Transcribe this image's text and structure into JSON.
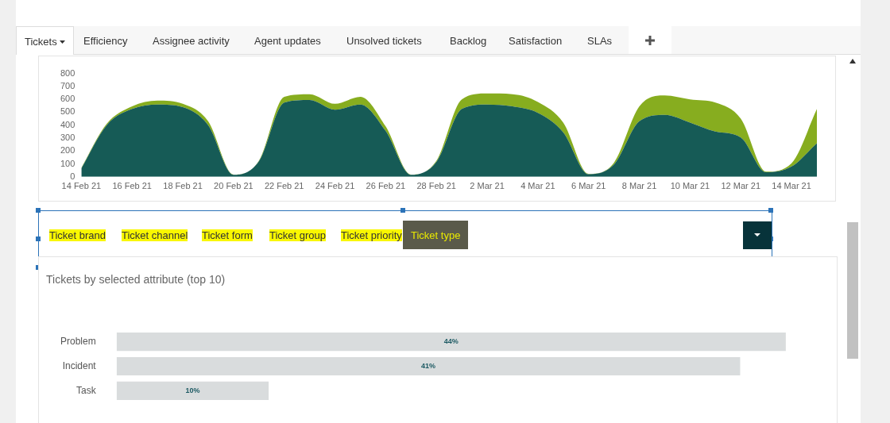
{
  "chart_data": [
    {
      "type": "other",
      "annotations": [
        "Tickets",
        "Efficiency",
        "Assignee activity",
        "Agent updates",
        "Unsolved tickets",
        "Backlog",
        "Satisfaction",
        "SLAs"
      ]
    },
    {
      "type": "area",
      "stacked": true,
      "categories": [
        "14 Feb 21",
        null,
        "16 Feb 21",
        null,
        "18 Feb 21",
        null,
        "20 Feb 21",
        null,
        "22 Feb 21",
        null,
        "24 Feb 21",
        null,
        "26 Feb 21",
        null,
        "28 Feb 21",
        null,
        "2 Mar 21",
        null,
        "4 Mar 21",
        null,
        "6 Mar 21",
        null,
        "8 Mar 21",
        null,
        "10 Mar 21",
        null,
        "12 Mar 21",
        null,
        "14 Mar 21",
        null
      ],
      "series": [
        {
          "color": "#165b56",
          "values": [
            65,
            400,
            525,
            560,
            540,
            400,
            15,
            120,
            575,
            595,
            520,
            560,
            355,
            15,
            115,
            525,
            560,
            545,
            495,
            345,
            20,
            95,
            430,
            480,
            420,
            350,
            305,
            35,
            80,
            260
          ]
        },
        {
          "color": "#87ad1f",
          "values": [
            5,
            10,
            20,
            30,
            25,
            30,
            2,
            5,
            45,
            45,
            45,
            60,
            35,
            2,
            10,
            75,
            85,
            95,
            85,
            75,
            3,
            15,
            115,
            150,
            180,
            225,
            145,
            5,
            25,
            265
          ]
        }
      ],
      "ylim": [
        0,
        800
      ],
      "yticks": [
        0,
        100,
        200,
        300,
        400,
        500,
        600,
        700,
        800
      ],
      "grid": false,
      "legend": false
    },
    {
      "type": "other",
      "annotations": [
        "Ticket brand",
        "Ticket channel",
        "Ticket form",
        "Ticket group",
        "Ticket priority",
        "Ticket type"
      ]
    },
    {
      "type": "bar",
      "orientation": "horizontal",
      "title": "Tickets by selected attribute (top 10)",
      "categories": [
        "Problem",
        "Incident",
        "Task"
      ],
      "values": [
        44,
        41,
        10
      ],
      "value_labels": [
        "44%",
        "41%",
        "10%"
      ],
      "color": "#d9dcdd",
      "grid": false,
      "legend": false
    }
  ]
}
